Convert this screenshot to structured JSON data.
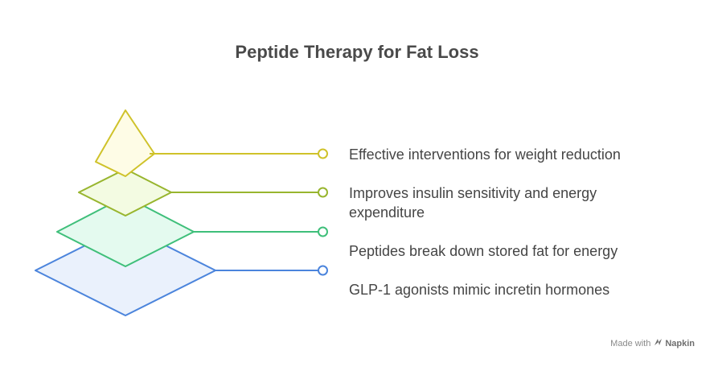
{
  "title": "Peptide Therapy for Fat Loss",
  "layers": [
    {
      "label": "Effective interventions for weight reduction",
      "stroke": "#cfc22a",
      "fill": "#fefce6"
    },
    {
      "label": "Improves insulin sensitivity and energy expenditure",
      "stroke": "#98b52e",
      "fill": "#f3fbe2"
    },
    {
      "label": "Peptides break down stored fat for energy",
      "stroke": "#3fbf7a",
      "fill": "#e4faef"
    },
    {
      "label": "GLP-1 agonists mimic incretin hormones",
      "stroke": "#4b84dc",
      "fill": "#eaf1fc"
    }
  ],
  "footer": {
    "made_with": "Made with",
    "brand": "Napkin",
    "brand_icon": "napkin-logo-icon"
  }
}
